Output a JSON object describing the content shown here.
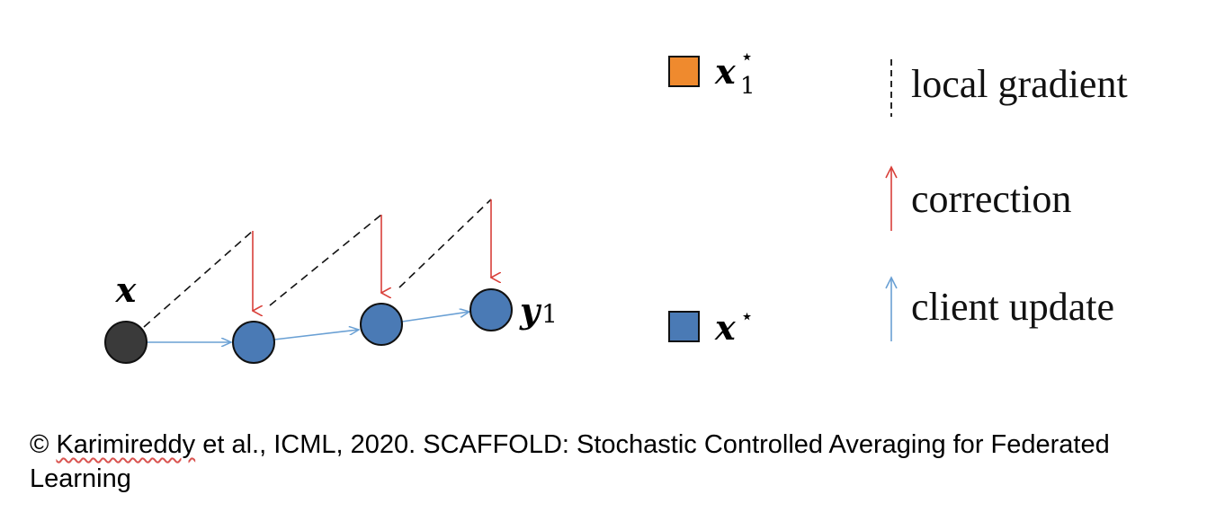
{
  "diagram": {
    "nodes": {
      "start": {
        "base": "x"
      },
      "end": {
        "base": "y",
        "subscript": "1"
      }
    },
    "legend": {
      "optimum_local": {
        "base": "x",
        "subscript": "1",
        "superscript": "⋆"
      },
      "optimum_global": {
        "base": "x",
        "superscript": "⋆"
      },
      "items": [
        {
          "label": "local gradient"
        },
        {
          "label": "correction"
        },
        {
          "label": "client update"
        }
      ]
    },
    "colors": {
      "start_node": "#3a3a3a",
      "node": "#4a7ab5",
      "correction": "#d9403a",
      "client_update": "#6aa0d4",
      "local_gradient": "#111111",
      "local_optimum": "#ef8a2e",
      "global_optimum": "#4a7ab5"
    }
  },
  "caption": {
    "copyright": "©",
    "author": "Karimireddy",
    "rest": " et al., ICML, 2020. SCAFFOLD: Stochastic Controlled Averaging for Federated Learning"
  }
}
